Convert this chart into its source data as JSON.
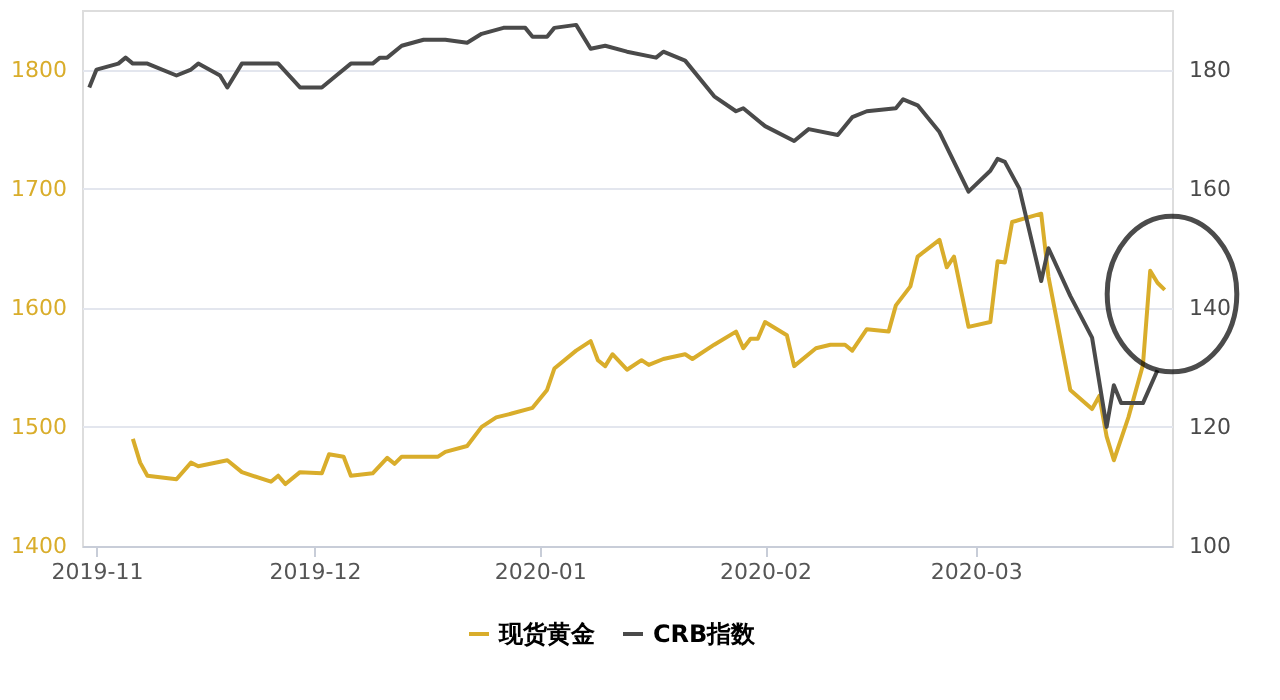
{
  "chart_data": {
    "type": "line",
    "xlim": [
      "2019-10-30",
      "2020-03-28"
    ],
    "xticks": [
      "2019-11",
      "2019-12",
      "2020-01",
      "2020-02",
      "2020-03"
    ],
    "ylim": [
      1400,
      1850
    ],
    "yticks": [
      1400,
      1500,
      1600,
      1700,
      1800
    ],
    "y2lim": [
      100,
      190
    ],
    "y2ticks": [
      100,
      120,
      140,
      160,
      180
    ],
    "grid": "y",
    "legend": "bottom",
    "marker": "none",
    "line_style": "solid",
    "series": [
      {
        "name": "现货黄金",
        "color": "#d9ad2b",
        "x": [
          "2019-11-06",
          "2019-11-07",
          "2019-11-08",
          "2019-11-12",
          "2019-11-14",
          "2019-11-15",
          "2019-11-19",
          "2019-11-21",
          "2019-11-25",
          "2019-11-26",
          "2019-11-27",
          "2019-11-29",
          "2019-12-02",
          "2019-12-03",
          "2019-12-05",
          "2019-12-06",
          "2019-12-09",
          "2019-12-11",
          "2019-12-12",
          "2019-12-13",
          "2019-12-18",
          "2019-12-19",
          "2019-12-22",
          "2019-12-24",
          "2019-12-26",
          "2019-12-28",
          "2019-12-31",
          "2020-01-02",
          "2020-01-03",
          "2020-01-06",
          "2020-01-08",
          "2020-01-09",
          "2020-01-10",
          "2020-01-11",
          "2020-01-13",
          "2020-01-15",
          "2020-01-16",
          "2020-01-18",
          "2020-01-21",
          "2020-01-22",
          "2020-01-25",
          "2020-01-28",
          "2020-01-29",
          "2020-01-30",
          "2020-01-31",
          "2020-02-01",
          "2020-02-04",
          "2020-02-05",
          "2020-02-08",
          "2020-02-10",
          "2020-02-12",
          "2020-02-13",
          "2020-02-15",
          "2020-02-18",
          "2020-02-19",
          "2020-02-21",
          "2020-02-22",
          "2020-02-25",
          "2020-02-26",
          "2020-02-27",
          "2020-02-29",
          "2020-03-03",
          "2020-03-04",
          "2020-03-05",
          "2020-03-06",
          "2020-03-10",
          "2020-03-11",
          "2020-03-14",
          "2020-03-17",
          "2020-03-18",
          "2020-03-19",
          "2020-03-20",
          "2020-03-22",
          "2020-03-24",
          "2020-03-25",
          "2020-03-26",
          "2020-03-27"
        ],
        "values": [
          1490,
          1470,
          1459,
          1456,
          1470,
          1467,
          1472,
          1462,
          1454,
          1459,
          1452,
          1462,
          1461,
          1477,
          1475,
          1459,
          1461,
          1474,
          1469,
          1475,
          1475,
          1479,
          1484,
          1500,
          1508,
          1511,
          1516,
          1531,
          1549,
          1564,
          1572,
          1556,
          1551,
          1561,
          1548,
          1556,
          1552,
          1557,
          1561,
          1557,
          1569,
          1580,
          1566,
          1574,
          1574,
          1588,
          1577,
          1551,
          1566,
          1569,
          1569,
          1564,
          1582,
          1580,
          1602,
          1618,
          1643,
          1657,
          1634,
          1643,
          1584,
          1588,
          1639,
          1638,
          1672,
          1679,
          1626,
          1531,
          1515,
          1526,
          1492,
          1472,
          1508,
          1552,
          1631,
          1621,
          1615
        ]
      },
      {
        "name": "CRB指数",
        "color": "#4a4a4a",
        "axis": "y2",
        "x": [
          "2019-10-31",
          "2019-11-01",
          "2019-11-04",
          "2019-11-05",
          "2019-11-06",
          "2019-11-08",
          "2019-11-12",
          "2019-11-14",
          "2019-11-15",
          "2019-11-18",
          "2019-11-19",
          "2019-11-21",
          "2019-11-26",
          "2019-11-29",
          "2019-12-02",
          "2019-12-04",
          "2019-12-06",
          "2019-12-09",
          "2019-12-10",
          "2019-12-11",
          "2019-12-13",
          "2019-12-16",
          "2019-12-19",
          "2019-12-22",
          "2019-12-24",
          "2019-12-27",
          "2019-12-30",
          "2019-12-31",
          "2020-01-02",
          "2020-01-03",
          "2020-01-06",
          "2020-01-08",
          "2020-01-10",
          "2020-01-13",
          "2020-01-17",
          "2020-01-18",
          "2020-01-21",
          "2020-01-25",
          "2020-01-28",
          "2020-01-29",
          "2020-02-01",
          "2020-02-05",
          "2020-02-07",
          "2020-02-11",
          "2020-02-13",
          "2020-02-15",
          "2020-02-19",
          "2020-02-20",
          "2020-02-22",
          "2020-02-25",
          "2020-02-29",
          "2020-03-03",
          "2020-03-04",
          "2020-03-05",
          "2020-03-07",
          "2020-03-10",
          "2020-03-11",
          "2020-03-14",
          "2020-03-17",
          "2020-03-19",
          "2020-03-20",
          "2020-03-21",
          "2020-03-24",
          "2020-03-26"
        ],
        "values": [
          177,
          180,
          181,
          182,
          181,
          181,
          179,
          180,
          181,
          179,
          177,
          181,
          181,
          177,
          177,
          179,
          181,
          181,
          182,
          182,
          184,
          185,
          185,
          184.5,
          186,
          187,
          187,
          185.5,
          185.5,
          187,
          187.5,
          183.5,
          184,
          183,
          182,
          183,
          181.5,
          175.5,
          173,
          173.5,
          170.5,
          168,
          170,
          169,
          172,
          173,
          173.5,
          175,
          174,
          169.5,
          159.5,
          163,
          165,
          164.5,
          160,
          144.5,
          150,
          142,
          135,
          120,
          127,
          124,
          124,
          129.5
        ]
      }
    ]
  }
}
